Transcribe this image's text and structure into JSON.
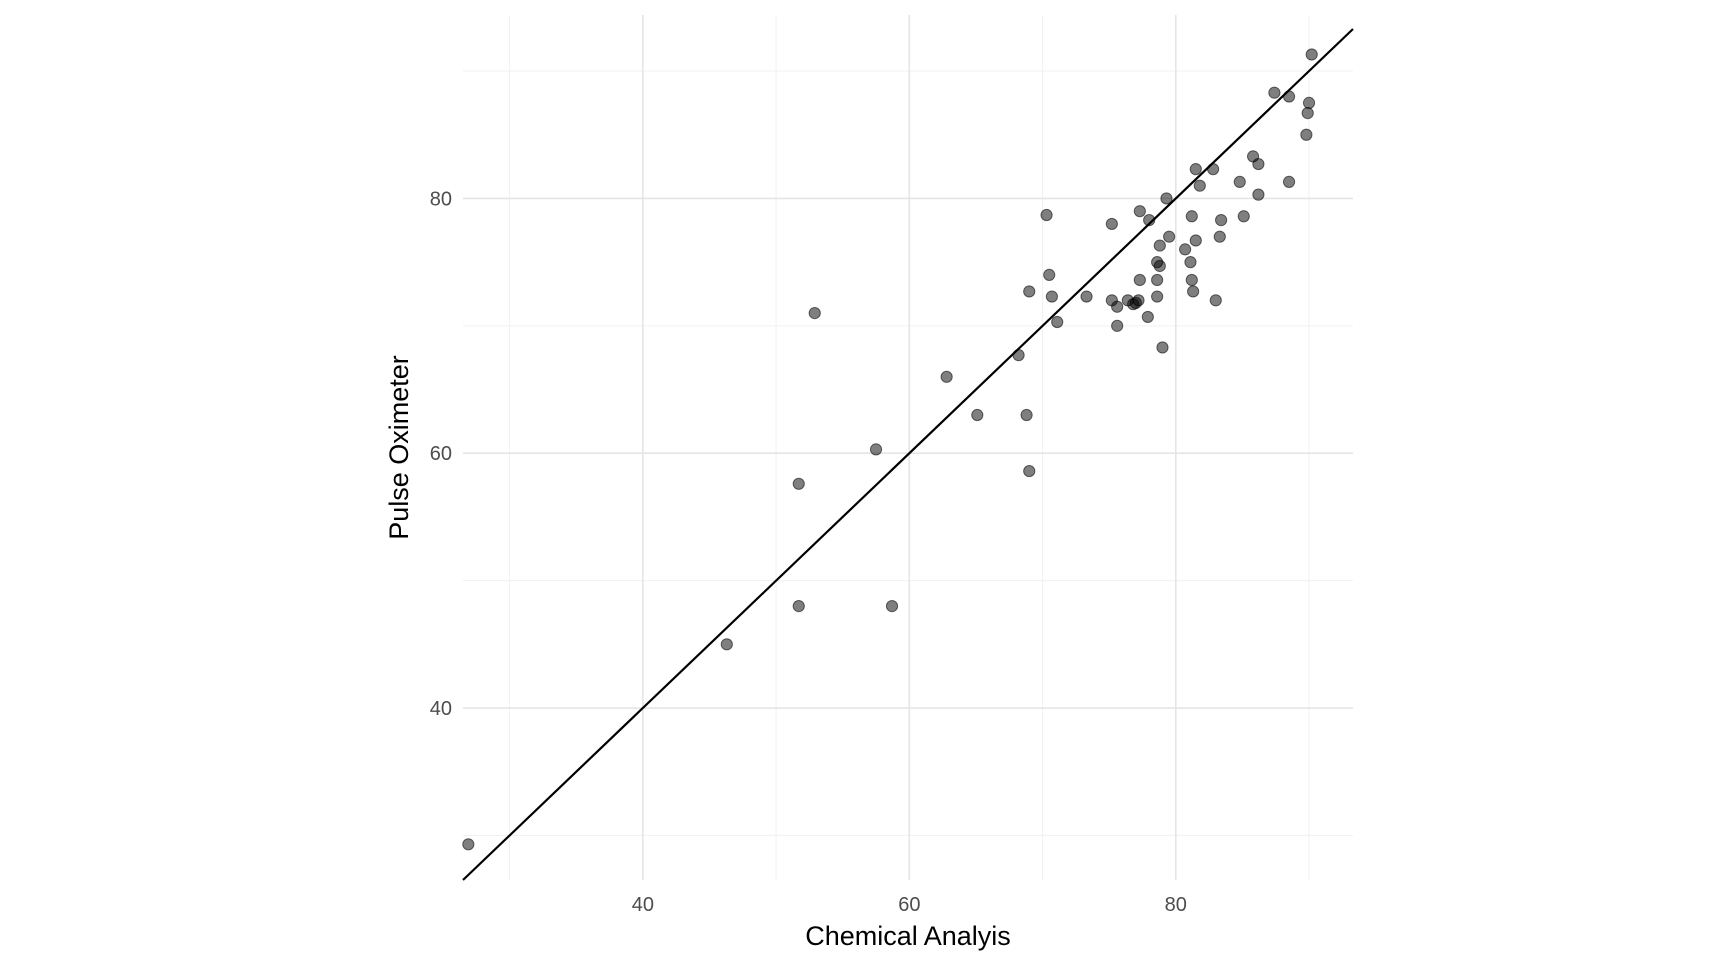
{
  "chart_data": {
    "type": "scatter",
    "xlabel": "Chemical Analyis",
    "ylabel": "Pulse Oximeter",
    "xlim": [
      26.5,
      93.3
    ],
    "ylim": [
      26.5,
      94.4
    ],
    "x_ticks": [
      40,
      60,
      80
    ],
    "y_ticks": [
      40,
      60,
      80
    ],
    "x_minor": [
      30,
      50,
      70,
      90
    ],
    "y_minor": [
      30,
      50,
      70,
      90
    ],
    "grid": true,
    "reference_line": {
      "slope": 1,
      "intercept": 0
    },
    "points": [
      {
        "x": 26.9,
        "y": 29.3
      },
      {
        "x": 46.3,
        "y": 45.0
      },
      {
        "x": 51.7,
        "y": 48.0
      },
      {
        "x": 58.7,
        "y": 48.0
      },
      {
        "x": 51.7,
        "y": 57.6
      },
      {
        "x": 57.5,
        "y": 60.3
      },
      {
        "x": 52.9,
        "y": 71.0
      },
      {
        "x": 62.8,
        "y": 66.0
      },
      {
        "x": 65.1,
        "y": 63.0
      },
      {
        "x": 68.8,
        "y": 63.0
      },
      {
        "x": 69.0,
        "y": 58.6
      },
      {
        "x": 68.2,
        "y": 67.7
      },
      {
        "x": 69.0,
        "y": 72.7
      },
      {
        "x": 70.3,
        "y": 78.7
      },
      {
        "x": 70.5,
        "y": 74.0
      },
      {
        "x": 70.7,
        "y": 72.3
      },
      {
        "x": 71.1,
        "y": 70.3
      },
      {
        "x": 73.3,
        "y": 72.3
      },
      {
        "x": 75.2,
        "y": 78.0
      },
      {
        "x": 75.2,
        "y": 72.0
      },
      {
        "x": 75.6,
        "y": 71.5
      },
      {
        "x": 75.6,
        "y": 70.0
      },
      {
        "x": 76.4,
        "y": 72.0
      },
      {
        "x": 76.8,
        "y": 71.7
      },
      {
        "x": 77.0,
        "y": 71.8
      },
      {
        "x": 77.2,
        "y": 72.0
      },
      {
        "x": 77.3,
        "y": 73.6
      },
      {
        "x": 77.3,
        "y": 79.0
      },
      {
        "x": 77.9,
        "y": 70.7
      },
      {
        "x": 78.0,
        "y": 78.3
      },
      {
        "x": 78.6,
        "y": 75.0
      },
      {
        "x": 78.6,
        "y": 73.6
      },
      {
        "x": 78.6,
        "y": 72.3
      },
      {
        "x": 78.8,
        "y": 74.7
      },
      {
        "x": 78.8,
        "y": 76.3
      },
      {
        "x": 79.0,
        "y": 68.3
      },
      {
        "x": 79.3,
        "y": 80.0
      },
      {
        "x": 79.5,
        "y": 77.0
      },
      {
        "x": 80.7,
        "y": 76.0
      },
      {
        "x": 81.1,
        "y": 75.0
      },
      {
        "x": 81.2,
        "y": 78.6
      },
      {
        "x": 81.2,
        "y": 73.6
      },
      {
        "x": 81.3,
        "y": 72.7
      },
      {
        "x": 81.5,
        "y": 76.7
      },
      {
        "x": 81.5,
        "y": 82.3
      },
      {
        "x": 81.8,
        "y": 81.0
      },
      {
        "x": 82.8,
        "y": 82.3
      },
      {
        "x": 83.0,
        "y": 72.0
      },
      {
        "x": 83.3,
        "y": 77.0
      },
      {
        "x": 83.4,
        "y": 78.3
      },
      {
        "x": 84.8,
        "y": 81.3
      },
      {
        "x": 85.1,
        "y": 78.6
      },
      {
        "x": 85.8,
        "y": 83.3
      },
      {
        "x": 86.2,
        "y": 82.7
      },
      {
        "x": 86.2,
        "y": 80.3
      },
      {
        "x": 87.4,
        "y": 88.3
      },
      {
        "x": 88.5,
        "y": 88.0
      },
      {
        "x": 88.5,
        "y": 81.3
      },
      {
        "x": 89.8,
        "y": 85.0
      },
      {
        "x": 89.9,
        "y": 86.7
      },
      {
        "x": 90.0,
        "y": 87.5
      },
      {
        "x": 90.2,
        "y": 91.3
      }
    ]
  }
}
